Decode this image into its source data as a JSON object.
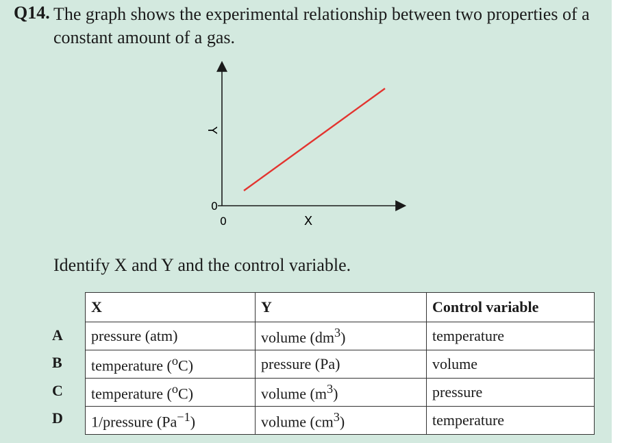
{
  "question": {
    "number": "Q14.",
    "text": "The graph shows the experimental relationship between two properties of a constant amount of a gas.",
    "prompt": "Identify X and Y and the control variable."
  },
  "graph": {
    "x_axis_label": "X",
    "y_axis_label": "Y",
    "x_origin_label": "0",
    "y_origin_label": "0",
    "line_color": "#e3342f"
  },
  "table": {
    "headers": [
      "X",
      "Y",
      "Control variable"
    ],
    "rows": [
      {
        "letter": "A",
        "x_html": "pressure (atm)",
        "y_html": "volume (dm<sup>3</sup>)",
        "control": "temperature"
      },
      {
        "letter": "B",
        "x_html": "temperature (<sup>o</sup>C)",
        "y_html": "pressure (Pa)",
        "control": "volume"
      },
      {
        "letter": "C",
        "x_html": "temperature (<sup>o</sup>C)",
        "y_html": "volume (m<sup>3</sup>)",
        "control": "pressure"
      },
      {
        "letter": "D",
        "x_html": "1/pressure (Pa<sup>−1</sup>)",
        "y_html": "volume (cm<sup>3</sup>)",
        "control": "temperature"
      }
    ]
  }
}
